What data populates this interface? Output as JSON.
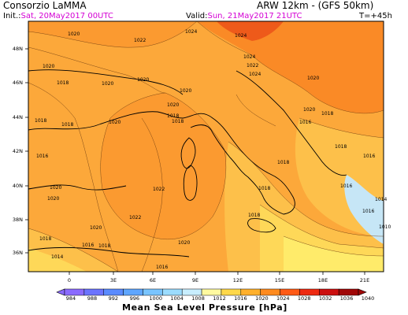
{
  "header": {
    "org": "Consorzio LaMMA",
    "model": "ARW 12km - (GFS 50km)",
    "init_label": "Init.:",
    "init_value": "Sat, 20May2017 00UTC",
    "valid_label": "Valid:",
    "valid_value": "Sun, 21May2017 21UTC",
    "lead": "T=+45h"
  },
  "map": {
    "lat_labels": [
      "48N",
      "46N",
      "44N",
      "42N",
      "40N",
      "38N",
      "36N"
    ],
    "lon_labels": [
      "0",
      "3E",
      "6E",
      "9E",
      "12E",
      "15E",
      "18E",
      "21E"
    ],
    "isobar_labels": [
      "1020",
      "1022",
      "1024",
      "1024",
      "1024",
      "1022",
      "1024",
      "1020",
      "1018",
      "1020",
      "1020",
      "1020",
      "1018",
      "1018",
      "1020",
      "1018",
      "1020",
      "1020",
      "1020",
      "1018",
      "1016",
      "1018",
      "1016",
      "1016",
      "1022",
      "1022",
      "1020",
      "1020",
      "1020",
      "1018",
      "1018",
      "1018",
      "1016",
      "1016",
      "1014",
      "1010",
      "1018",
      "1014",
      "1016",
      "1018",
      "1020",
      "1016",
      "1018"
    ]
  },
  "colorbar": {
    "levels": [
      "984",
      "988",
      "992",
      "996",
      "1000",
      "1004",
      "1008",
      "1012",
      "1016",
      "1020",
      "1024",
      "1028",
      "1032",
      "1036",
      "1040"
    ],
    "colors": [
      "#8a6bff",
      "#6b74ff",
      "#5a8bff",
      "#5fa6ff",
      "#79c4ff",
      "#9bdcff",
      "#c8eeff",
      "#fffaa0",
      "#ffd84a",
      "#ffb02c",
      "#ff8a1e",
      "#ff5a16",
      "#ee2a12",
      "#cc1010",
      "#a00808"
    ],
    "title": "Mean Sea Level Pressure [hPa]"
  },
  "fill_colors": {
    "p1024": "#fa8a26",
    "p1022": "#fb9a30",
    "p1020": "#fca83a",
    "p1018": "#fdc04a",
    "p1016": "#fed858",
    "p1014": "#ffeb6a",
    "p1012": "#fff27e",
    "sea_low": "#c6e6f6"
  }
}
